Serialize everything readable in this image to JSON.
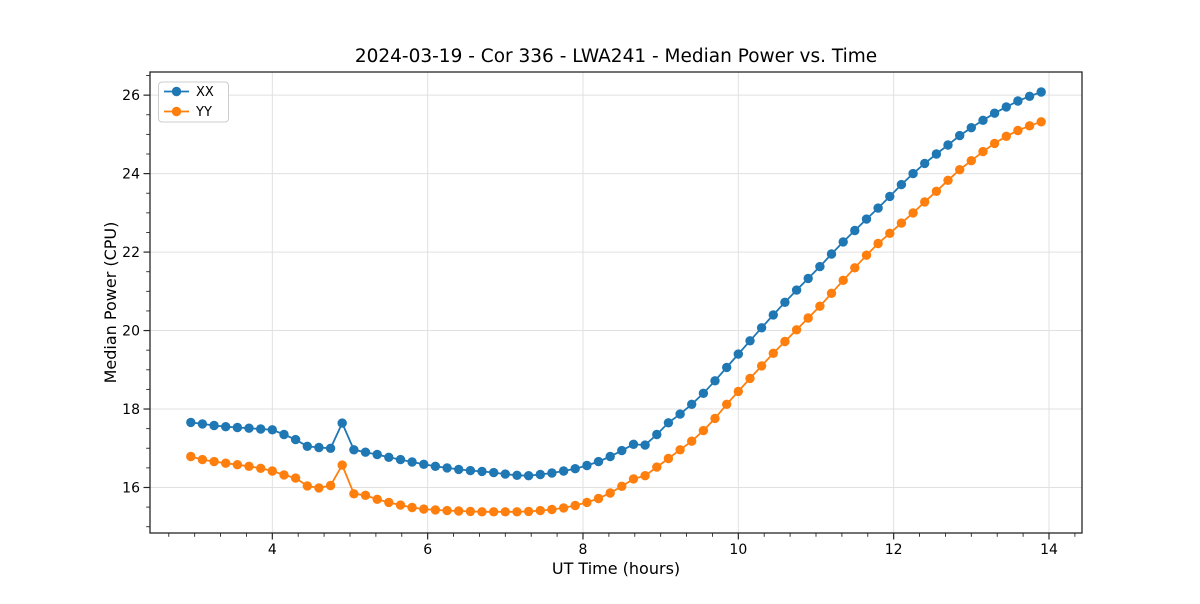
{
  "figure": {
    "title": "2024-03-19 - Cor 336 - LWA241 - Median Power vs. Time",
    "xlabel": "UT Time (hours)",
    "ylabel": "Median Power (CPU)"
  },
  "legend": {
    "entries": [
      "XX",
      "YY"
    ]
  },
  "colors": {
    "series_xx": "#1f77b4",
    "series_yy": "#ff7f0e",
    "grid": "#e0e0e0",
    "spine": "#262626",
    "background": "#ffffff"
  },
  "chart_data": {
    "type": "line",
    "title": "2024-03-19 - Cor 336 - LWA241 - Median Power vs. Time",
    "xlabel": "UT Time (hours)",
    "ylabel": "Median Power (CPU)",
    "xlim": [
      2.425,
      14.425
    ],
    "ylim": [
      14.84,
      26.59
    ],
    "x_ticks": [
      4,
      6,
      8,
      10,
      12,
      14
    ],
    "y_ticks": [
      16,
      18,
      20,
      22,
      24,
      26
    ],
    "x_minor_divisions": 6,
    "y_minor_divisions": 4,
    "grid": true,
    "legend_position": "upper-left",
    "marker": "circle",
    "x": [
      2.95,
      3.1,
      3.25,
      3.4,
      3.55,
      3.7,
      3.85,
      4,
      4.15,
      4.3,
      4.45,
      4.6,
      4.75,
      4.9,
      5.05,
      5.2,
      5.35,
      5.5,
      5.65,
      5.8,
      5.95,
      6.1,
      6.25,
      6.4,
      6.55,
      6.7,
      6.85,
      7,
      7.15,
      7.3,
      7.45,
      7.6,
      7.75,
      7.9,
      8.05,
      8.2,
      8.35,
      8.5,
      8.65,
      8.8,
      8.95,
      9.1,
      9.25,
      9.4,
      9.55,
      9.7,
      9.85,
      10,
      10.15,
      10.3,
      10.45,
      10.6,
      10.75,
      10.9,
      11.05,
      11.2,
      11.35,
      11.5,
      11.65,
      11.8,
      11.95,
      12.1,
      12.25,
      12.4,
      12.55,
      12.7,
      12.85,
      13,
      13.15,
      13.3,
      13.45,
      13.6,
      13.75,
      13.9
    ],
    "series": [
      {
        "name": "XX",
        "color": "#1f77b4",
        "values": [
          17.66,
          17.62,
          17.58,
          17.55,
          17.53,
          17.51,
          17.49,
          17.47,
          17.35,
          17.22,
          17.05,
          17.02,
          17.0,
          17.64,
          16.96,
          16.9,
          16.84,
          16.77,
          16.71,
          16.65,
          16.59,
          16.54,
          16.5,
          16.46,
          16.43,
          16.41,
          16.38,
          16.34,
          16.31,
          16.3,
          16.33,
          16.37,
          16.42,
          16.48,
          16.56,
          16.66,
          16.79,
          16.94,
          17.1,
          17.08,
          17.35,
          17.65,
          17.87,
          18.12,
          18.4,
          18.72,
          19.06,
          19.4,
          19.74,
          20.07,
          20.4,
          20.72,
          21.03,
          21.33,
          21.63,
          21.95,
          22.26,
          22.55,
          22.84,
          23.12,
          23.42,
          23.72,
          24.0,
          24.26,
          24.5,
          24.73,
          24.97,
          25.17,
          25.36,
          25.54,
          25.7,
          25.85,
          25.97,
          26.08
        ]
      },
      {
        "name": "YY",
        "color": "#ff7f0e",
        "values": [
          16.79,
          16.71,
          16.66,
          16.62,
          16.58,
          16.54,
          16.49,
          16.42,
          16.32,
          16.24,
          16.04,
          15.99,
          16.05,
          16.57,
          15.84,
          15.8,
          15.7,
          15.62,
          15.55,
          15.49,
          15.45,
          15.43,
          15.41,
          15.4,
          15.39,
          15.38,
          15.38,
          15.38,
          15.38,
          15.39,
          15.41,
          15.44,
          15.48,
          15.54,
          15.62,
          15.72,
          15.86,
          16.03,
          16.22,
          16.3,
          16.52,
          16.74,
          16.96,
          17.18,
          17.45,
          17.76,
          18.12,
          18.45,
          18.78,
          19.1,
          19.42,
          19.72,
          20.02,
          20.32,
          20.62,
          20.95,
          21.28,
          21.6,
          21.92,
          22.22,
          22.48,
          22.74,
          23.0,
          23.28,
          23.55,
          23.83,
          24.1,
          24.33,
          24.56,
          24.77,
          24.95,
          25.1,
          25.22,
          25.32
        ]
      }
    ]
  }
}
